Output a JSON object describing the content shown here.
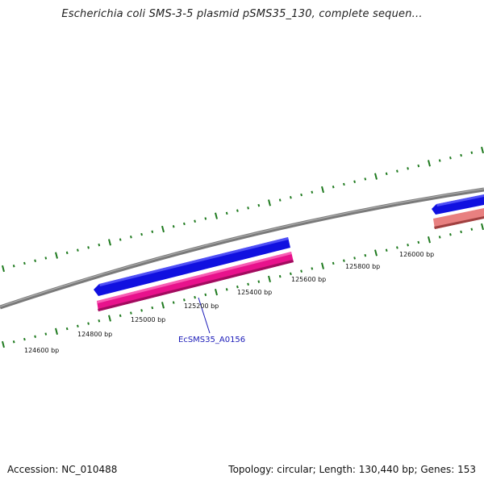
{
  "title": "Escherichia coli SMS-3-5 plasmid pSMS35_130, complete sequen...",
  "accession_text": "Accession: NC_010488",
  "summary_text": "Topology: circular; Length: 130,440 bp; Genes: 153",
  "colors": {
    "backbone": "#808080",
    "tick": "#1e7a1e",
    "forward_gene": "#1010e0",
    "reverse_gene": "#e8128c",
    "reverse_gene_light": "#e88080",
    "gene_label": "#1a1ab8"
  },
  "scale_labels": [
    "124600 bp",
    "124800 bp",
    "125000 bp",
    "125200 bp",
    "125400 bp",
    "125600 bp",
    "125800 bp",
    "126000 bp"
  ],
  "genes": [
    {
      "label": "EcSMS35_A0156",
      "strand": "reverse"
    },
    {
      "label": "",
      "strand": "forward"
    },
    {
      "label": "",
      "strand": "forward"
    },
    {
      "label": "",
      "strand": "reverse"
    }
  ]
}
